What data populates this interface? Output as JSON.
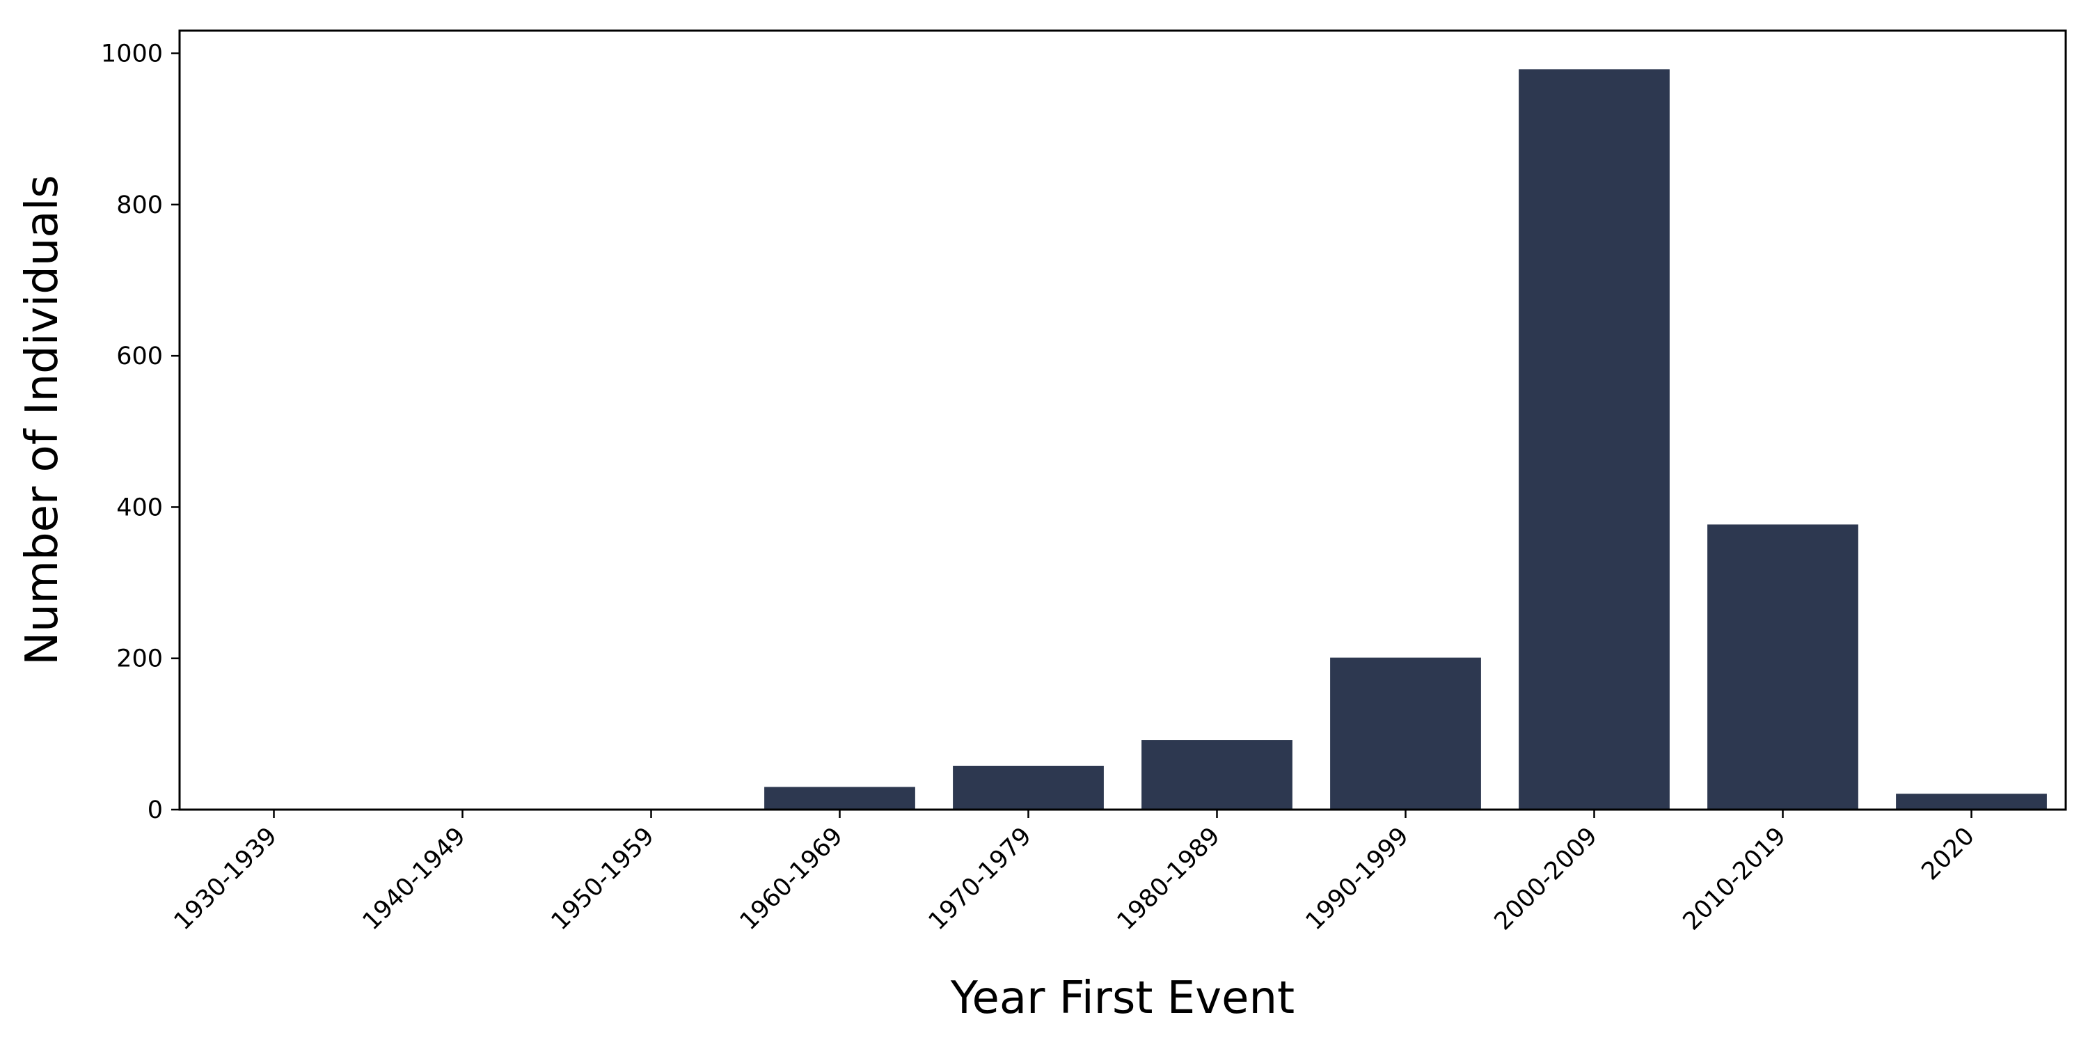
{
  "chart_data": {
    "type": "bar",
    "title": "",
    "xlabel": "Year First Event",
    "ylabel": "Number of Individuals",
    "categories": [
      "1930-1939",
      "1940-1949",
      "1950-1959",
      "1960-1969",
      "1970-1979",
      "1980-1989",
      "1990-1999",
      "2000-2009",
      "2010-2019",
      "2020"
    ],
    "values": [
      1,
      1,
      1,
      30,
      58,
      92,
      201,
      979,
      377,
      21
    ],
    "ylim": [
      0,
      1030
    ],
    "yticks": [
      0,
      200,
      400,
      600,
      800,
      1000
    ],
    "grid": false,
    "legend": "none",
    "bar_color": "#2d3850",
    "axis_color": "#000000"
  }
}
